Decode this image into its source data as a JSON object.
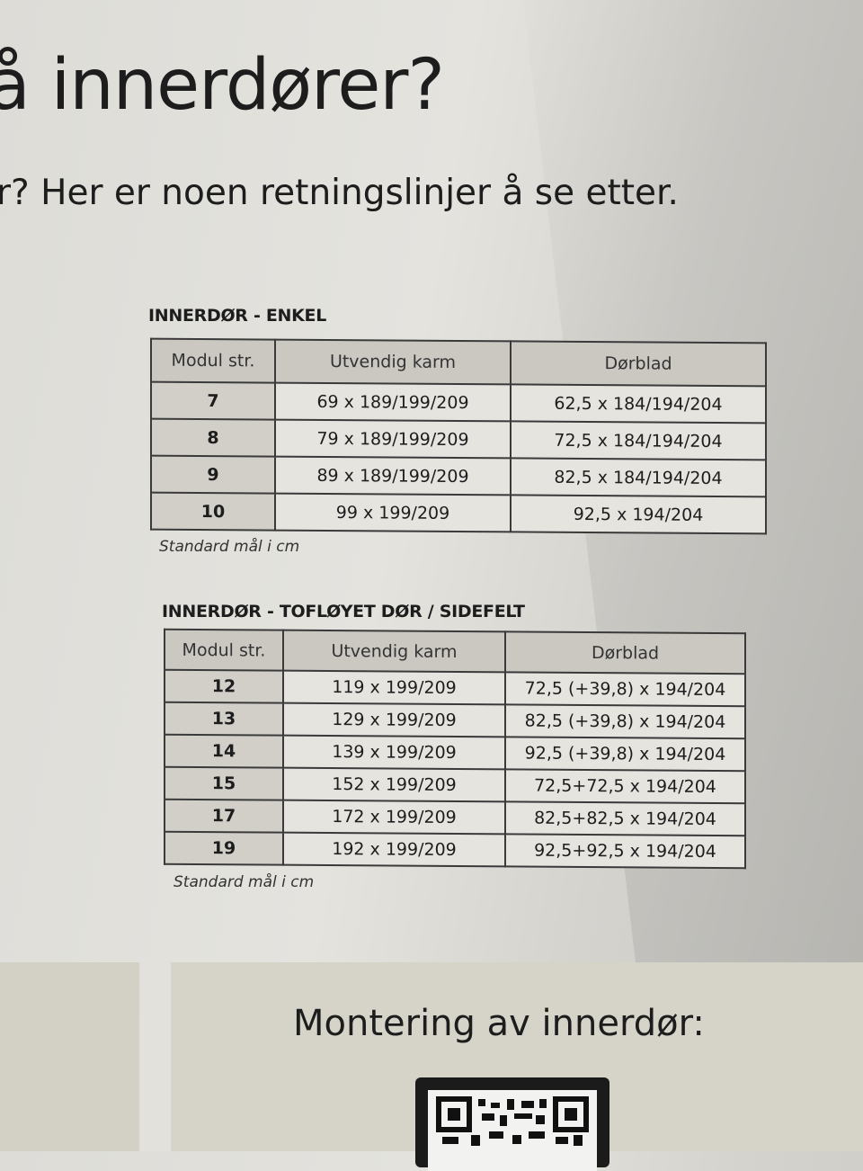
{
  "header": {
    "title": "å innerdører?",
    "subtitle": "r? Her er noen retningslinjer å se etter."
  },
  "table_single": {
    "title": "INNERDØR - ENKEL",
    "columns": [
      "Modul str.",
      "Utvendig karm",
      "Dørblad"
    ],
    "rows": [
      [
        "7",
        "69 x 189/199/209",
        "62,5 x 184/194/204"
      ],
      [
        "8",
        "79 x 189/199/209",
        "72,5 x 184/194/204"
      ],
      [
        "9",
        "89 x 189/199/209",
        "82,5 x 184/194/204"
      ],
      [
        "10",
        "99 x 199/209",
        "92,5 x 194/204"
      ]
    ],
    "note": "Standard mål i cm"
  },
  "table_double": {
    "title": "INNERDØR - TOFLØYET DØR / SIDEFELT",
    "columns": [
      "Modul str.",
      "Utvendig karm",
      "Dørblad"
    ],
    "rows": [
      [
        "12",
        "119 x 199/209",
        "72,5 (+39,8) x 194/204"
      ],
      [
        "13",
        "129 x 199/209",
        "82,5 (+39,8) x 194/204"
      ],
      [
        "14",
        "139 x 199/209",
        "92,5 (+39,8) x 194/204"
      ],
      [
        "15",
        "152 x 199/209",
        "72,5+72,5 x 194/204"
      ],
      [
        "17",
        "172 x 199/209",
        "82,5+82,5 x 194/204"
      ],
      [
        "19",
        "192 x 199/209",
        "92,5+92,5 x 194/204"
      ]
    ],
    "note": "Standard mål i cm"
  },
  "footer": {
    "mounting_title": "Montering av innerdør:",
    "qr_icon": "qr-code"
  }
}
